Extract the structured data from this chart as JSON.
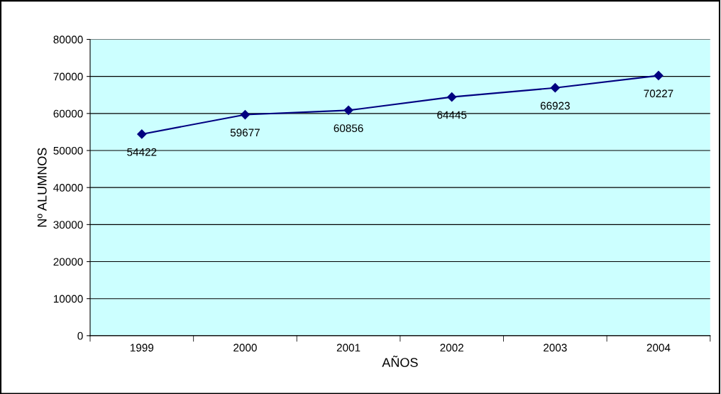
{
  "chart_data": {
    "type": "line",
    "xlabel": "AÑOS",
    "ylabel": "Nº ALUMNOS",
    "categories": [
      "1999",
      "2000",
      "2001",
      "2002",
      "2003",
      "2004"
    ],
    "series": [
      {
        "color": "#000080",
        "values": [
          54422,
          59677,
          60856,
          64445,
          66923,
          70227
        ]
      }
    ],
    "ylim": [
      0,
      80000
    ],
    "yticks": [
      0,
      10000,
      20000,
      30000,
      40000,
      50000,
      60000,
      70000,
      80000
    ],
    "grid": "y",
    "marker": "diamond",
    "line_style": "solid",
    "data_labels": true,
    "legend": false
  }
}
